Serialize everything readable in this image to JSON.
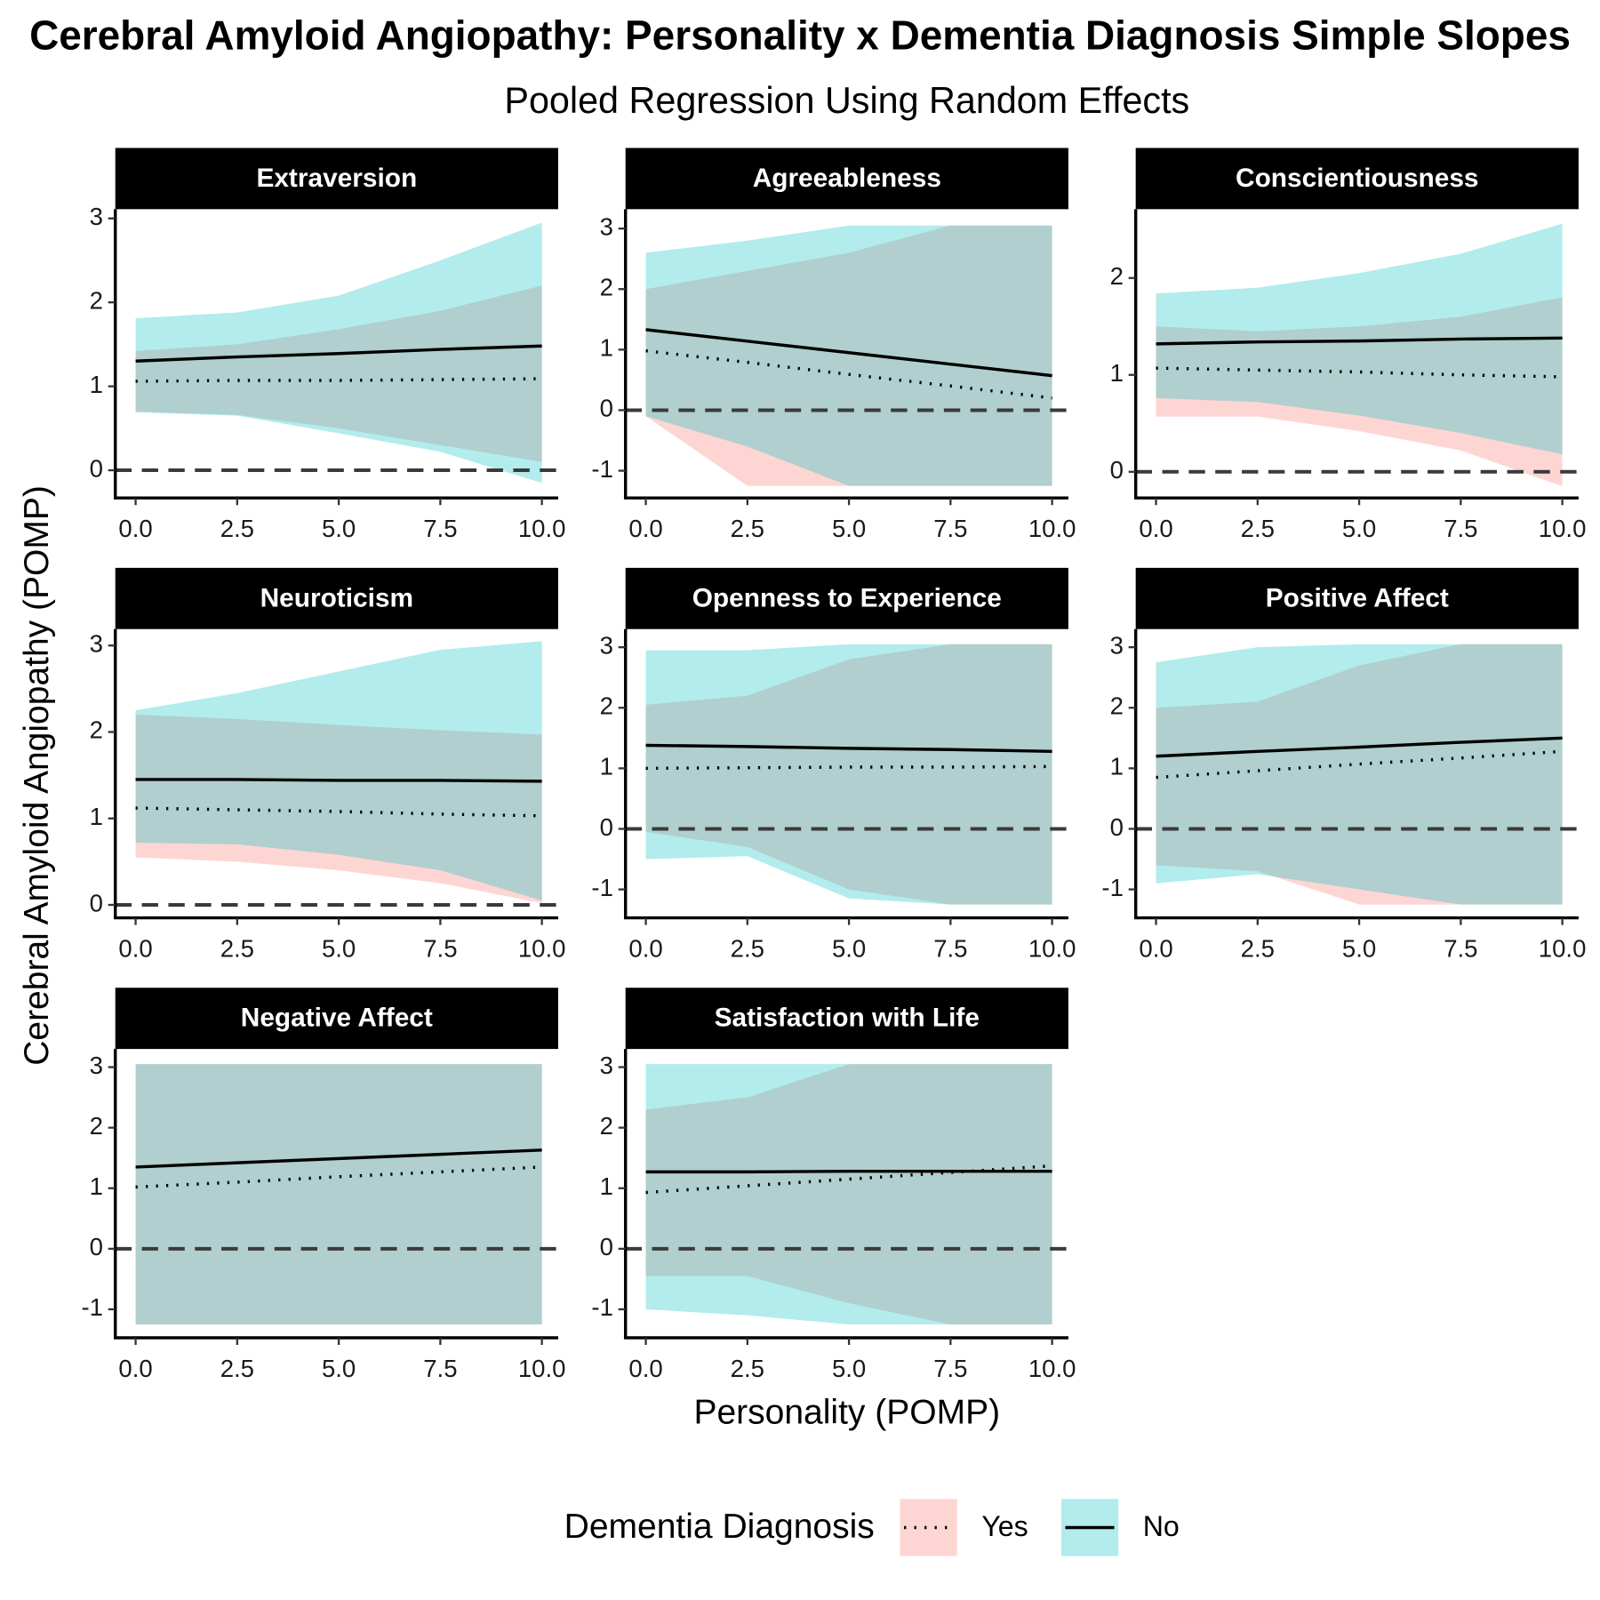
{
  "chart_data": {
    "type": "line",
    "title": "Cerebral Amyloid Angiopathy: Personality x Dementia Diagnosis Simple Slopes",
    "subtitle": "Pooled Regression Using Random Effects",
    "xlabel": "Personality (POMP)",
    "ylabel": "Cerebral Amyloid Angiopathy (POMP)",
    "legend": {
      "title": "Dementia Diagnosis",
      "position": "bottom"
    },
    "series": [
      {
        "name": "Yes",
        "color": "#F8766D",
        "linestyle": "dotted"
      },
      {
        "name": "No",
        "color": "#00BFC4",
        "linestyle": "solid"
      }
    ],
    "x": [
      0,
      2.5,
      5,
      7.5,
      10
    ],
    "xlim": [
      -0.5,
      10.4
    ],
    "xticks": [
      {
        "value": 0,
        "label": "0.0"
      },
      2.5,
      {
        "value": 5,
        "label": "5.0"
      },
      7.5,
      {
        "value": 10,
        "label": "10.0"
      }
    ],
    "hline": 0,
    "facets": [
      {
        "title": "Extraversion",
        "ylim": [
          -0.33,
          3.11
        ],
        "yticks": [
          0,
          1,
          2,
          3
        ],
        "series": [
          {
            "values": [
              1.06,
              1.07,
              1.07,
              1.08,
              1.09
            ],
            "lower": [
              0.7,
              0.66,
              0.5,
              0.3,
              0.1
            ],
            "upper": [
              1.42,
              1.5,
              1.68,
              1.9,
              2.2
            ]
          },
          {
            "values": [
              1.3,
              1.35,
              1.39,
              1.44,
              1.48
            ],
            "lower": [
              0.69,
              0.65,
              0.44,
              0.22,
              -0.15
            ],
            "upper": [
              1.81,
              1.88,
              2.08,
              2.5,
              2.95
            ]
          }
        ]
      },
      {
        "title": "Agreeableness",
        "ylim": [
          -1.45,
          3.32
        ],
        "yticks": [
          -1,
          0,
          1,
          2,
          3
        ],
        "series": [
          {
            "values": [
              0.98,
              0.79,
              0.59,
              0.4,
              0.2
            ],
            "lower": [
              -0.1,
              -1.25,
              -1.25,
              -1.25,
              -1.25
            ],
            "upper": [
              2.0,
              2.3,
              2.6,
              3.05,
              3.05
            ]
          },
          {
            "values": [
              1.33,
              1.14,
              0.95,
              0.76,
              0.57
            ],
            "lower": [
              -0.1,
              -0.6,
              -1.25,
              -1.25,
              -1.25
            ],
            "upper": [
              2.6,
              2.8,
              3.05,
              3.05,
              3.05
            ]
          }
        ]
      },
      {
        "title": "Conscientiousness",
        "ylim": [
          -0.27,
          2.71
        ],
        "yticks": [
          0,
          1,
          2
        ],
        "series": [
          {
            "values": [
              1.07,
              1.05,
              1.03,
              1.0,
              0.98
            ],
            "lower": [
              0.57,
              0.57,
              0.42,
              0.22,
              -0.15
            ],
            "upper": [
              1.5,
              1.45,
              1.5,
              1.6,
              1.8
            ]
          },
          {
            "values": [
              1.32,
              1.34,
              1.35,
              1.37,
              1.38
            ],
            "lower": [
              0.76,
              0.72,
              0.58,
              0.4,
              0.18
            ],
            "upper": [
              1.84,
              1.9,
              2.05,
              2.25,
              2.56
            ]
          }
        ]
      },
      {
        "title": "Neuroticism",
        "ylim": [
          -0.15,
          3.19
        ],
        "yticks": [
          0,
          1,
          2,
          3
        ],
        "series": [
          {
            "values": [
              1.12,
              1.1,
              1.08,
              1.05,
              1.03
            ],
            "lower": [
              0.55,
              0.5,
              0.4,
              0.25,
              0.02
            ],
            "upper": [
              2.2,
              2.15,
              2.08,
              2.02,
              1.97
            ]
          },
          {
            "values": [
              1.45,
              1.45,
              1.44,
              1.44,
              1.43
            ],
            "lower": [
              0.72,
              0.7,
              0.58,
              0.4,
              0.05
            ],
            "upper": [
              2.25,
              2.45,
              2.7,
              2.95,
              3.05
            ]
          }
        ]
      },
      {
        "title": "Openness to Experience",
        "ylim": [
          -1.47,
          3.3
        ],
        "yticks": [
          -1,
          0,
          1,
          2,
          3
        ],
        "series": [
          {
            "values": [
              1.0,
              1.01,
              1.02,
              1.02,
              1.03
            ],
            "lower": [
              -0.05,
              -0.3,
              -1.0,
              -1.25,
              -1.25
            ],
            "upper": [
              2.05,
              2.2,
              2.8,
              3.05,
              3.05
            ]
          },
          {
            "values": [
              1.38,
              1.36,
              1.33,
              1.31,
              1.28
            ],
            "lower": [
              -0.5,
              -0.45,
              -1.15,
              -1.25,
              -1.25
            ],
            "upper": [
              2.95,
              2.95,
              3.05,
              3.05,
              3.05
            ]
          }
        ]
      },
      {
        "title": "Positive Affect",
        "ylim": [
          -1.47,
          3.3
        ],
        "yticks": [
          -1,
          0,
          1,
          2,
          3
        ],
        "series": [
          {
            "values": [
              0.85,
              0.96,
              1.07,
              1.17,
              1.28
            ],
            "lower": [
              -0.6,
              -0.7,
              -1.25,
              -1.25,
              -1.25
            ],
            "upper": [
              2.0,
              2.1,
              2.7,
              3.05,
              3.05
            ]
          },
          {
            "values": [
              1.2,
              1.28,
              1.35,
              1.43,
              1.5
            ],
            "lower": [
              -0.9,
              -0.75,
              -1.0,
              -1.25,
              -1.25
            ],
            "upper": [
              2.75,
              3.0,
              3.05,
              3.05,
              3.05
            ]
          }
        ]
      },
      {
        "title": "Negative Affect",
        "ylim": [
          -1.47,
          3.3
        ],
        "yticks": [
          -1,
          0,
          1,
          2,
          3
        ],
        "series": [
          {
            "values": [
              1.02,
              1.1,
              1.19,
              1.27,
              1.35
            ],
            "lower": [
              -1.25,
              -1.25,
              -1.25,
              -1.25,
              -1.25
            ],
            "upper": [
              3.05,
              3.05,
              3.05,
              3.05,
              3.05
            ]
          },
          {
            "values": [
              1.35,
              1.42,
              1.49,
              1.56,
              1.63
            ],
            "lower": [
              -1.25,
              -1.25,
              -1.25,
              -1.25,
              -1.25
            ],
            "upper": [
              3.05,
              3.05,
              3.05,
              3.05,
              3.05
            ]
          }
        ]
      },
      {
        "title": "Satisfaction with Life",
        "ylim": [
          -1.47,
          3.3
        ],
        "yticks": [
          -1,
          0,
          1,
          2,
          3
        ],
        "series": [
          {
            "values": [
              0.93,
              1.04,
              1.15,
              1.26,
              1.37
            ],
            "lower": [
              -0.45,
              -0.45,
              -0.9,
              -1.25,
              -1.25
            ],
            "upper": [
              2.3,
              2.5,
              3.05,
              3.05,
              3.05
            ]
          },
          {
            "values": [
              1.27,
              1.27,
              1.28,
              1.28,
              1.28
            ],
            "lower": [
              -1.0,
              -1.1,
              -1.25,
              -1.25,
              -1.25
            ],
            "upper": [
              3.05,
              3.05,
              3.05,
              3.05,
              3.05
            ]
          }
        ]
      }
    ]
  }
}
